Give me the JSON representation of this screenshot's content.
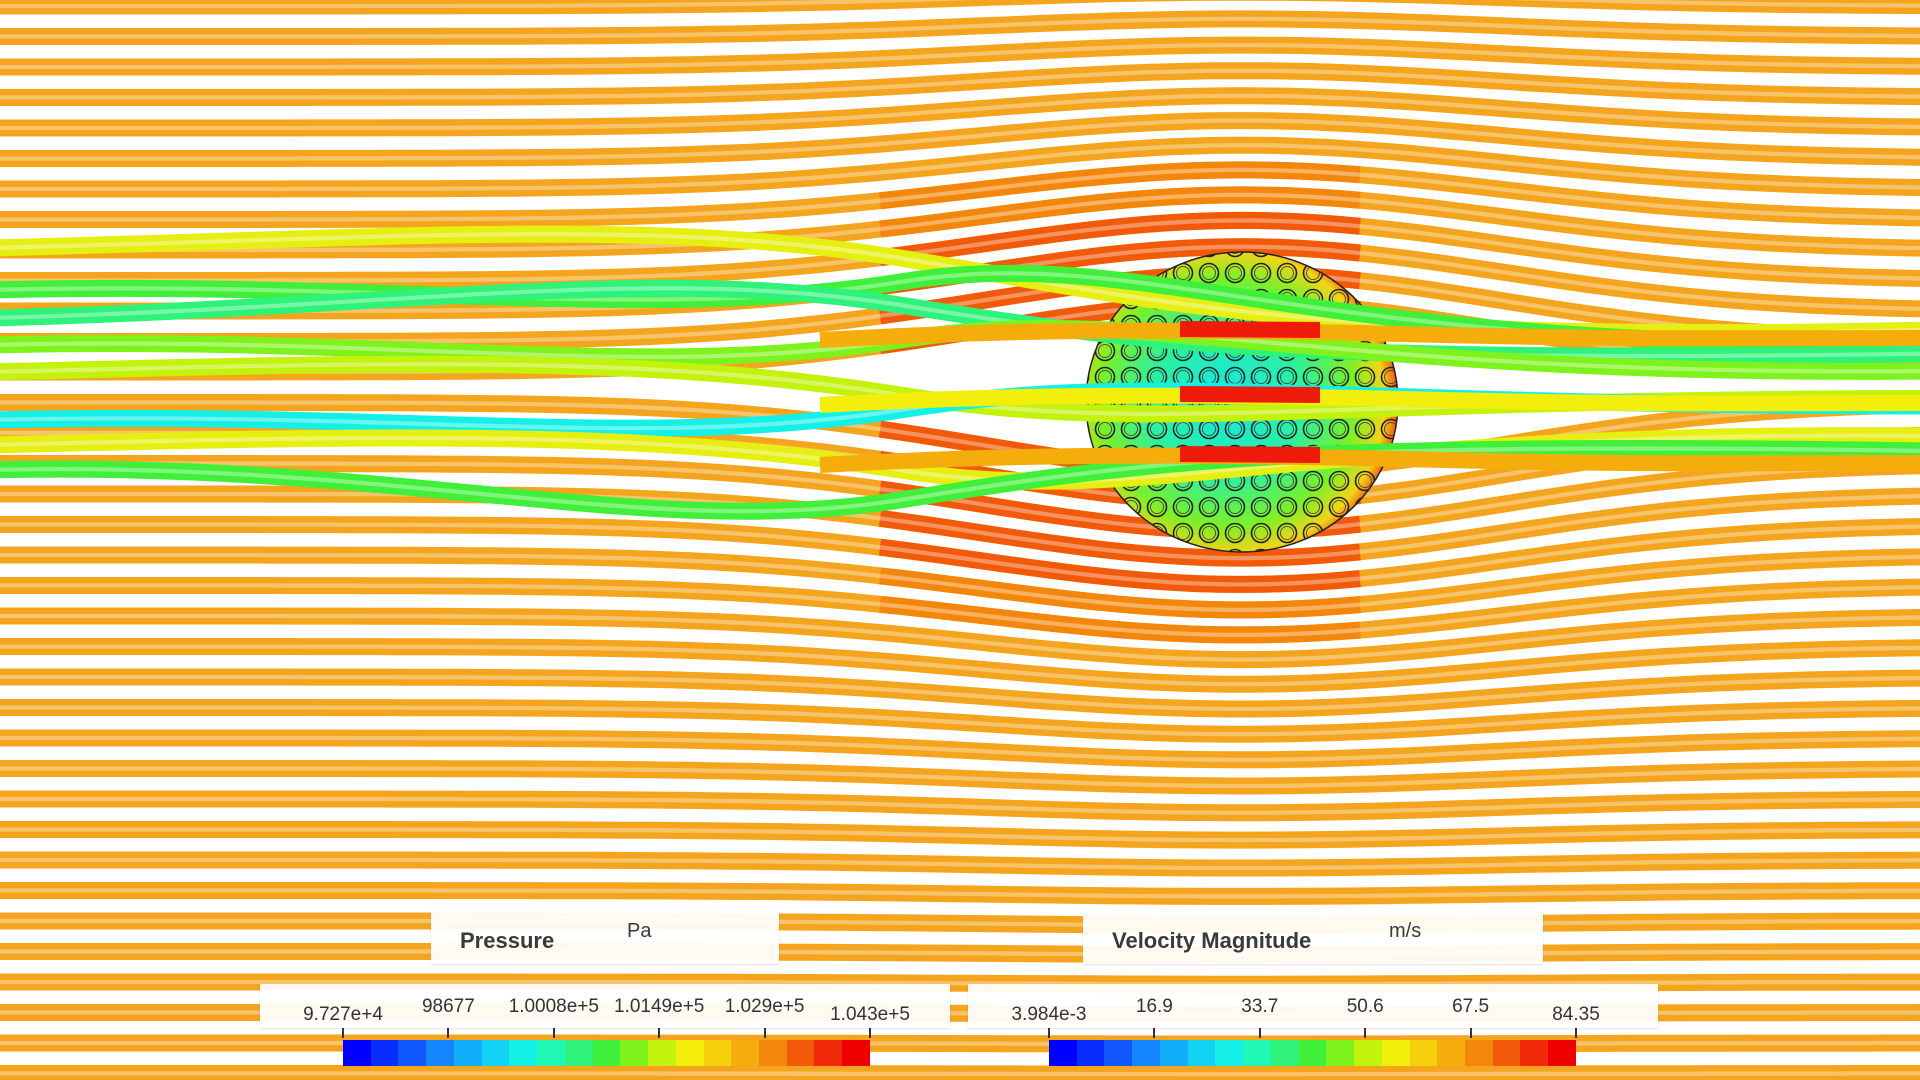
{
  "legends": [
    {
      "quantity": "Pressure",
      "unit": "Pa",
      "ticks": [
        "9.727e+4",
        "98677",
        "1.0008e+5",
        "1.0149e+5",
        "1.029e+5",
        "1.043e+5"
      ]
    },
    {
      "quantity": "Velocity Magnitude",
      "unit": "m/s",
      "ticks": [
        "3.984e-3",
        "16.9",
        "33.7",
        "50.6",
        "67.5",
        "84.35"
      ]
    }
  ],
  "colormap": [
    "#0000ff",
    "#0a2dff",
    "#1157ff",
    "#1385ff",
    "#12aef9",
    "#12d3f4",
    "#14f0e6",
    "#1ff7b4",
    "#2ef27a",
    "#3fef3a",
    "#7ef21c",
    "#c3f20d",
    "#f3ee0c",
    "#f6d00c",
    "#f4ad0b",
    "#f3870b",
    "#f25a0a",
    "#f22a0a",
    "#ee0000"
  ],
  "colors": {
    "streamline_base": "#f4a21c",
    "sphere_surface": "#2fe08a",
    "background": "#ffffff"
  }
}
